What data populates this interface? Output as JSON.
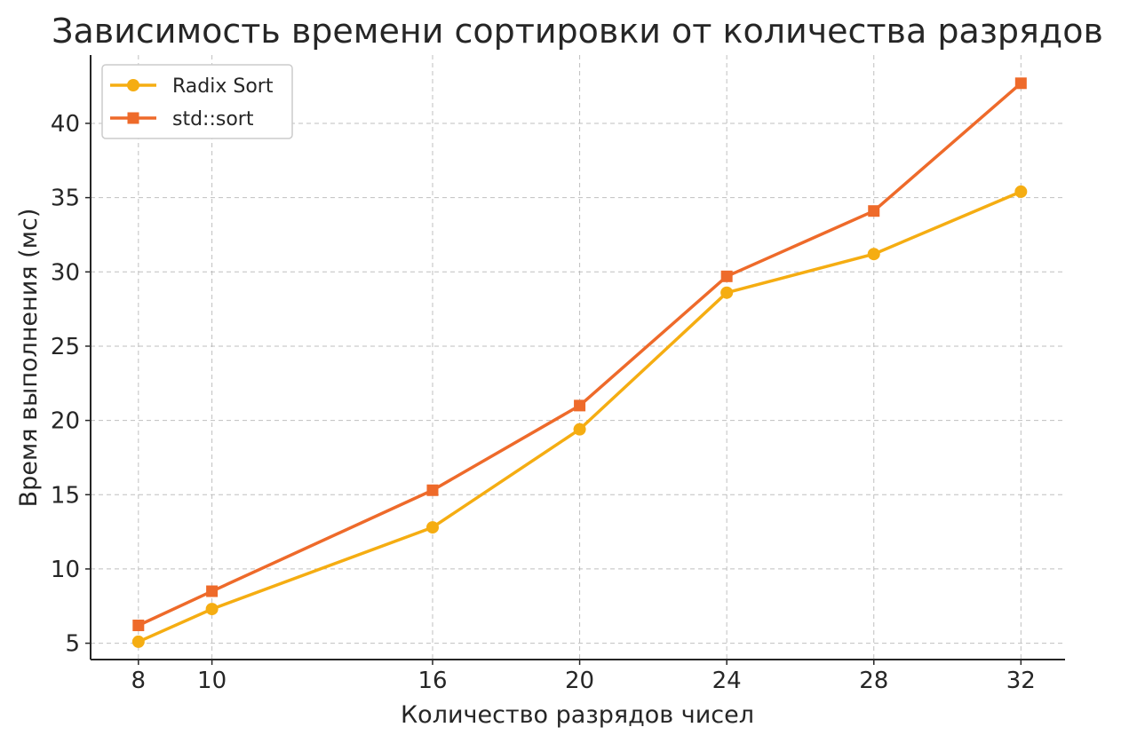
{
  "chart_data": {
    "type": "line",
    "title": "Зависимость времени сортировки от количества разрядов",
    "xlabel": "Количество разрядов чисел",
    "ylabel": "Время выполнения (мс)",
    "x": [
      8,
      10,
      16,
      20,
      24,
      28,
      32
    ],
    "x_ticks": [
      "8",
      "10",
      "16",
      "20",
      "24",
      "28",
      "32"
    ],
    "y_ticks": [
      "5",
      "10",
      "15",
      "20",
      "25",
      "30",
      "35",
      "40"
    ],
    "xlim": [
      6.7,
      33.2
    ],
    "ylim": [
      3.9,
      44.6
    ],
    "grid": true,
    "legend_position": "top-left",
    "series": [
      {
        "name": "Radix Sort",
        "values": [
          5.1,
          7.3,
          12.8,
          19.4,
          28.6,
          31.2,
          35.4
        ],
        "color": "#F5AD12",
        "marker": "circle"
      },
      {
        "name": "std::sort",
        "values": [
          6.2,
          8.5,
          15.3,
          21.0,
          29.7,
          34.1,
          42.7
        ],
        "color": "#EE6A2A",
        "marker": "square"
      }
    ]
  }
}
